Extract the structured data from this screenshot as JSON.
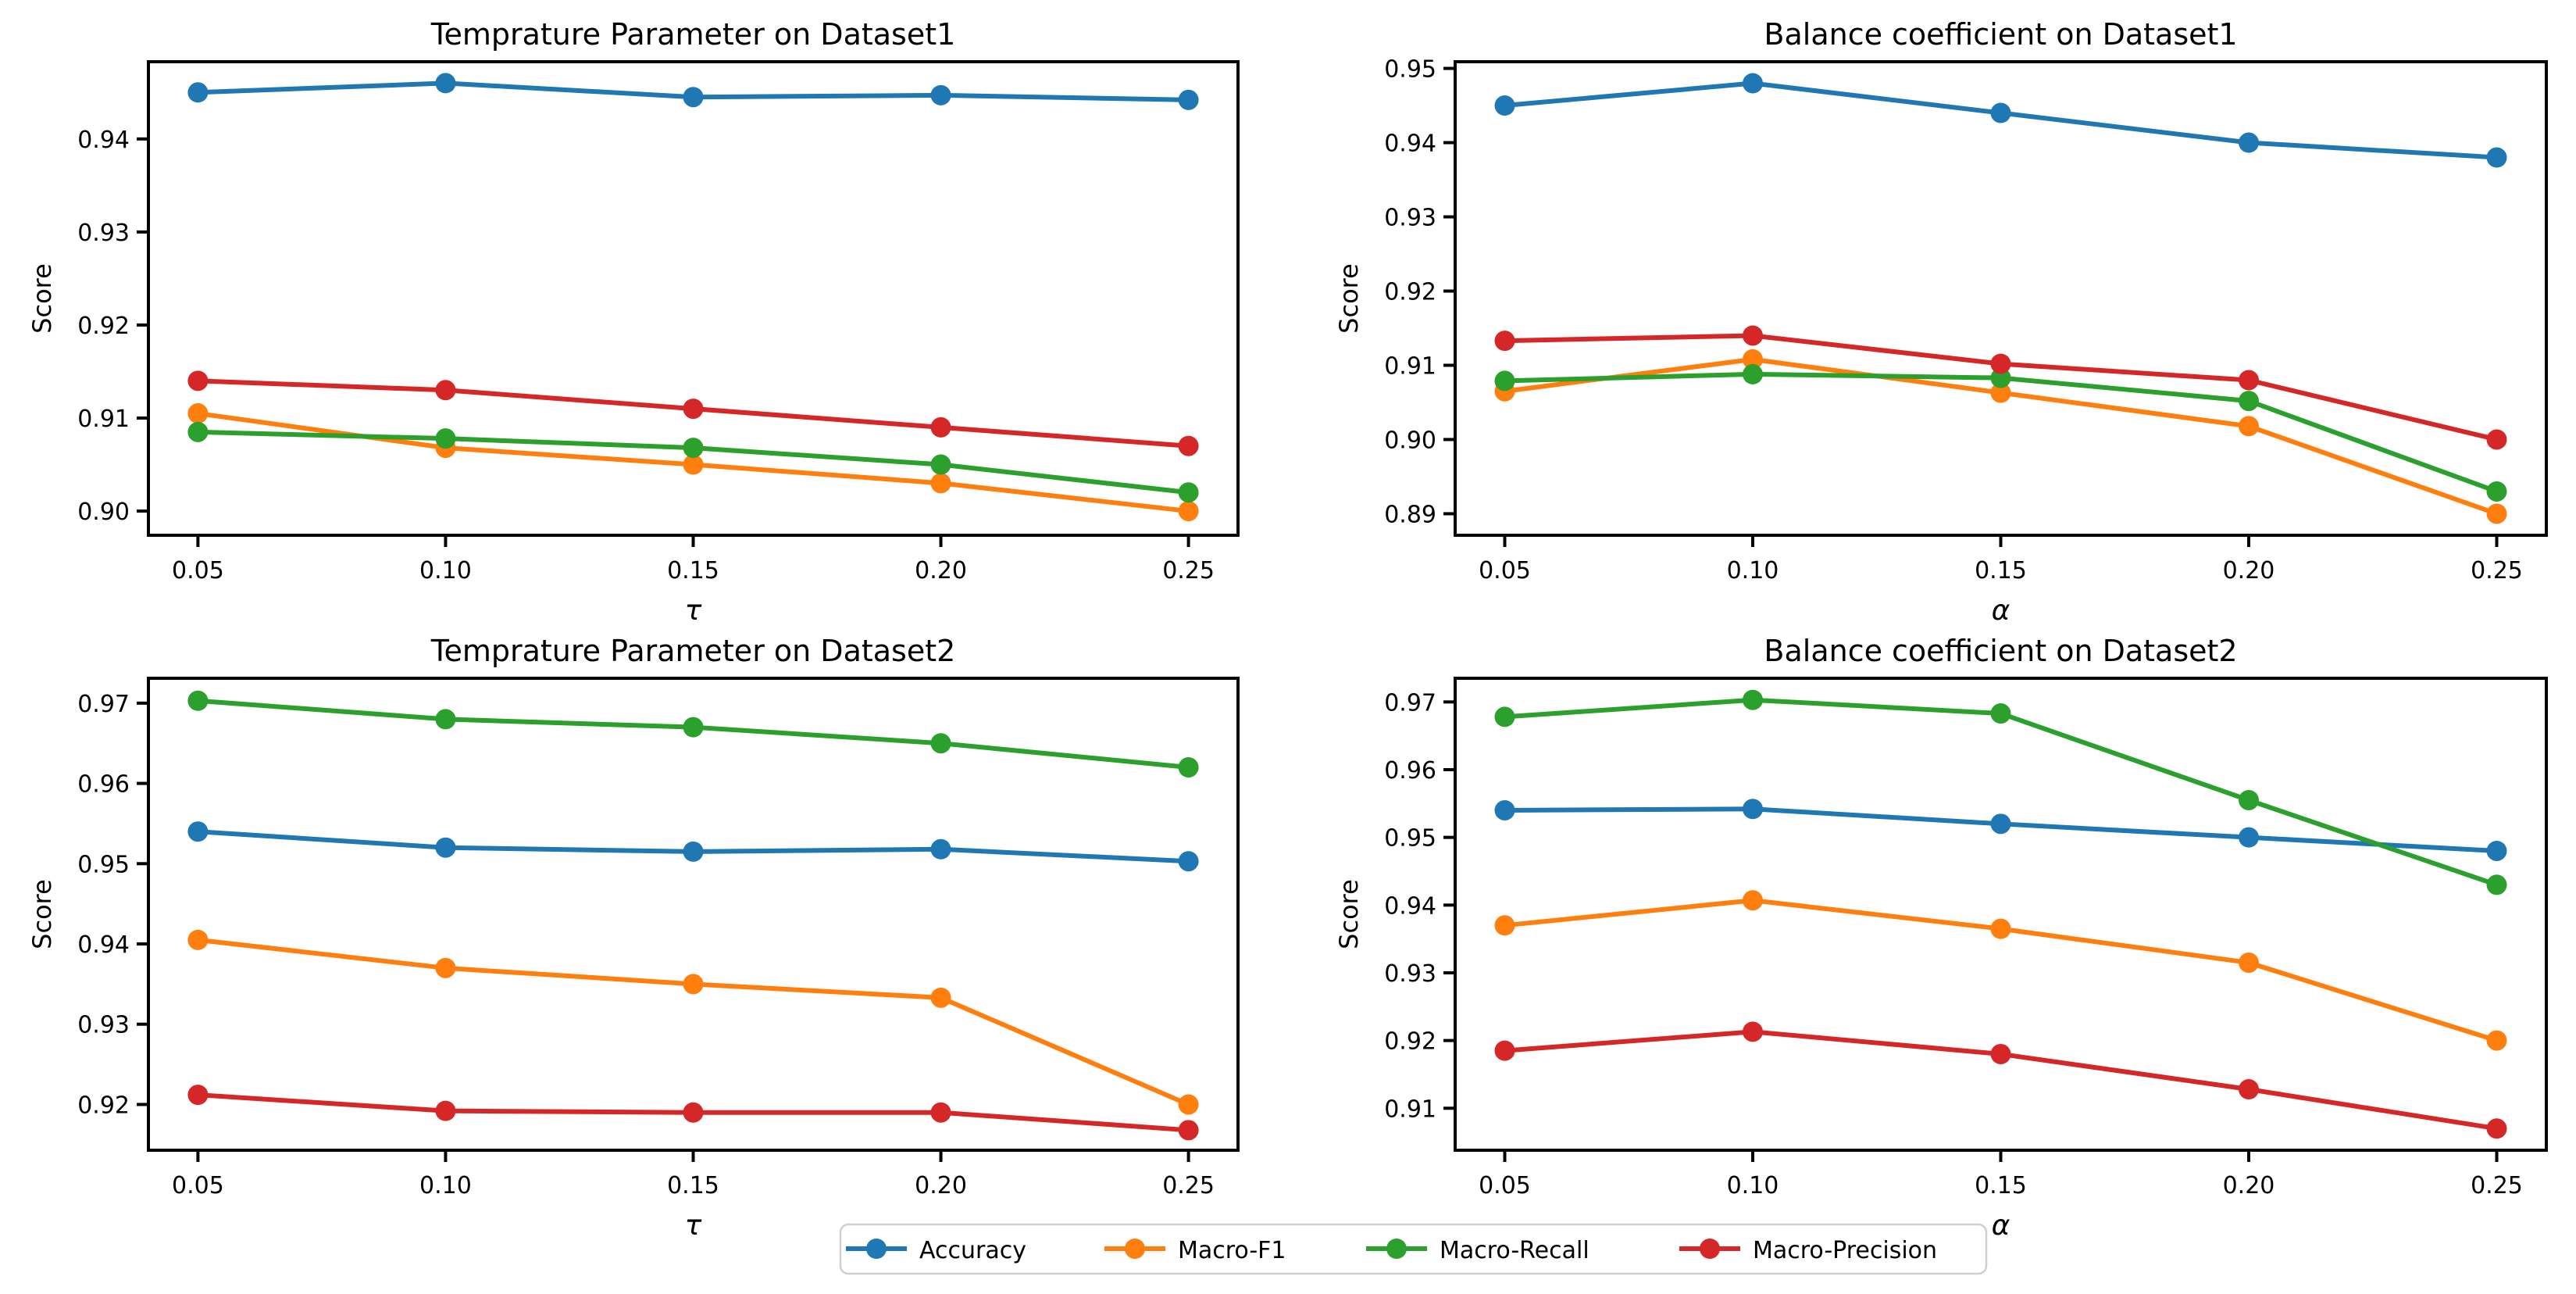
{
  "figure": {
    "background": "#ffffff",
    "axis_color": "#000000"
  },
  "legend": {
    "items": [
      {
        "label": "Accuracy",
        "color": "#1f77b4"
      },
      {
        "label": "Macro-F1",
        "color": "#ff7f0e"
      },
      {
        "label": "Macro-Recall",
        "color": "#2ca02c"
      },
      {
        "label": "Macro-Precision",
        "color": "#d62728"
      }
    ]
  },
  "chart_data": [
    {
      "type": "line",
      "title": "Temprature Parameter on Dataset1",
      "xlabel": "τ",
      "ylabel": "Score",
      "x": [
        0.05,
        0.1,
        0.15,
        0.2,
        0.25
      ],
      "x_tick_labels": [
        "0.05",
        "0.10",
        "0.15",
        "0.20",
        "0.25"
      ],
      "y_ticks": [
        0.9,
        0.91,
        0.92,
        0.93,
        0.94
      ],
      "y_tick_labels": [
        "0.90",
        "0.91",
        "0.92",
        "0.93",
        "0.94"
      ],
      "xlim": [
        0.04,
        0.26
      ],
      "ylim": [
        0.8974,
        0.9483
      ],
      "grid": false,
      "series": [
        {
          "name": "Accuracy",
          "color": "#1f77b4",
          "values": [
            0.945,
            0.946,
            0.9445,
            0.9447,
            0.9442
          ]
        },
        {
          "name": "Macro-F1",
          "color": "#ff7f0e",
          "values": [
            0.9105,
            0.9068,
            0.905,
            0.903,
            0.9
          ]
        },
        {
          "name": "Macro-Recall",
          "color": "#2ca02c",
          "values": [
            0.9085,
            0.9078,
            0.9068,
            0.905,
            0.902
          ]
        },
        {
          "name": "Macro-Precision",
          "color": "#d62728",
          "values": [
            0.914,
            0.913,
            0.911,
            0.909,
            0.907
          ]
        }
      ]
    },
    {
      "type": "line",
      "title": "Balance coefficient on Dataset1",
      "xlabel": "α",
      "ylabel": "Score",
      "x": [
        0.05,
        0.1,
        0.15,
        0.2,
        0.25
      ],
      "x_tick_labels": [
        "0.05",
        "0.10",
        "0.15",
        "0.20",
        "0.25"
      ],
      "y_ticks": [
        0.89,
        0.9,
        0.91,
        0.92,
        0.93,
        0.94,
        0.95
      ],
      "y_tick_labels": [
        "0.89",
        "0.90",
        "0.91",
        "0.92",
        "0.93",
        "0.94",
        "0.95"
      ],
      "xlim": [
        0.04,
        0.26
      ],
      "ylim": [
        0.8871,
        0.9509
      ],
      "grid": false,
      "series": [
        {
          "name": "Accuracy",
          "color": "#1f77b4",
          "values": [
            0.945,
            0.948,
            0.944,
            0.94,
            0.938
          ]
        },
        {
          "name": "Macro-F1",
          "color": "#ff7f0e",
          "values": [
            0.9065,
            0.9108,
            0.9063,
            0.9018,
            0.89
          ]
        },
        {
          "name": "Macro-Recall",
          "color": "#2ca02c",
          "values": [
            0.9079,
            0.9088,
            0.9083,
            0.9052,
            0.893
          ]
        },
        {
          "name": "Macro-Precision",
          "color": "#d62728",
          "values": [
            0.9133,
            0.914,
            0.9102,
            0.908,
            0.9
          ]
        }
      ]
    },
    {
      "type": "line",
      "title": "Temprature Parameter on Dataset2",
      "xlabel": "τ",
      "ylabel": "Score",
      "x": [
        0.05,
        0.1,
        0.15,
        0.2,
        0.25
      ],
      "x_tick_labels": [
        "0.05",
        "0.10",
        "0.15",
        "0.20",
        "0.25"
      ],
      "y_ticks": [
        0.92,
        0.93,
        0.94,
        0.95,
        0.96,
        0.97
      ],
      "y_tick_labels": [
        "0.92",
        "0.93",
        "0.94",
        "0.95",
        "0.96",
        "0.97"
      ],
      "xlim": [
        0.04,
        0.26
      ],
      "ylim": [
        0.9143,
        0.9731
      ],
      "grid": false,
      "series": [
        {
          "name": "Accuracy",
          "color": "#1f77b4",
          "values": [
            0.954,
            0.952,
            0.9515,
            0.9518,
            0.9503
          ]
        },
        {
          "name": "Macro-F1",
          "color": "#ff7f0e",
          "values": [
            0.9405,
            0.937,
            0.935,
            0.9333,
            0.92
          ]
        },
        {
          "name": "Macro-Recall",
          "color": "#2ca02c",
          "values": [
            0.9703,
            0.968,
            0.967,
            0.965,
            0.962
          ]
        },
        {
          "name": "Macro-Precision",
          "color": "#d62728",
          "values": [
            0.9212,
            0.9192,
            0.919,
            0.919,
            0.9168
          ]
        }
      ]
    },
    {
      "type": "line",
      "title": "Balance coefficient on Dataset2",
      "xlabel": "α",
      "ylabel": "Score",
      "x": [
        0.05,
        0.1,
        0.15,
        0.2,
        0.25
      ],
      "x_tick_labels": [
        "0.05",
        "0.10",
        "0.15",
        "0.20",
        "0.25"
      ],
      "y_ticks": [
        0.91,
        0.92,
        0.93,
        0.94,
        0.95,
        0.96,
        0.97
      ],
      "y_tick_labels": [
        "0.91",
        "0.92",
        "0.93",
        "0.94",
        "0.95",
        "0.96",
        "0.97"
      ],
      "xlim": [
        0.04,
        0.26
      ],
      "ylim": [
        0.9038,
        0.9735
      ],
      "grid": false,
      "series": [
        {
          "name": "Accuracy",
          "color": "#1f77b4",
          "values": [
            0.954,
            0.9542,
            0.952,
            0.95,
            0.948
          ]
        },
        {
          "name": "Macro-F1",
          "color": "#ff7f0e",
          "values": [
            0.937,
            0.9407,
            0.9365,
            0.9315,
            0.92
          ]
        },
        {
          "name": "Macro-Recall",
          "color": "#2ca02c",
          "values": [
            0.9678,
            0.9703,
            0.9683,
            0.9555,
            0.943
          ]
        },
        {
          "name": "Macro-Precision",
          "color": "#d62728",
          "values": [
            0.9185,
            0.9213,
            0.918,
            0.9128,
            0.907
          ]
        }
      ]
    }
  ]
}
